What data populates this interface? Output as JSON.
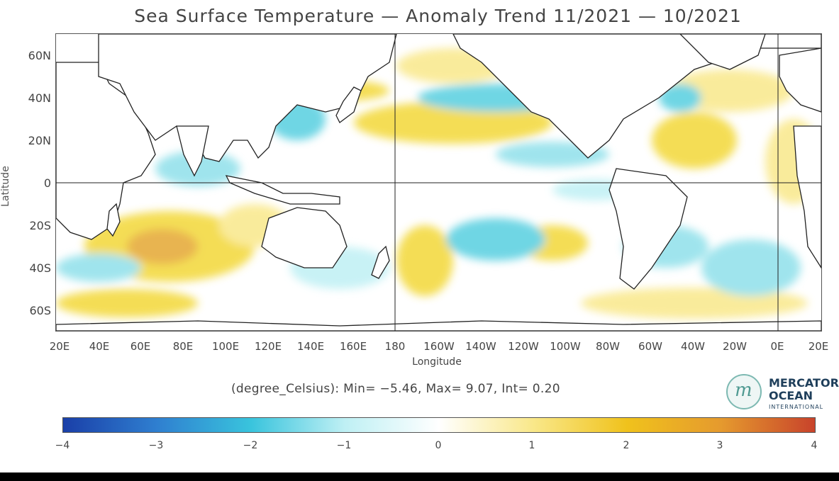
{
  "title": "Sea Surface Temperature — Anomaly Trend 11/2021 — 10/2021",
  "axes": {
    "ylabel": "Latitude",
    "xlabel": "Longitude",
    "lat_ticks": [
      "60N",
      "40N",
      "20N",
      "0",
      "20S",
      "40S",
      "60S"
    ],
    "lon_ticks": [
      "20E",
      "40E",
      "60E",
      "80E",
      "100E",
      "120E",
      "140E",
      "160E",
      "180",
      "160W",
      "140W",
      "120W",
      "100W",
      "80W",
      "60W",
      "40W",
      "20W",
      "0E",
      "20E"
    ]
  },
  "stats_text": "(degree_Celsius): Min= −5.46, Max= 9.07, Int= 0.20",
  "colorbar": {
    "ticks": [
      "−4",
      "−3",
      "−2",
      "−1",
      "0",
      "1",
      "2",
      "3",
      "4"
    ],
    "colors": [
      "#1a3fa8",
      "#2f7fd0",
      "#39c4dd",
      "#bff0f4",
      "#ffffff",
      "#f9e88a",
      "#f0c21c",
      "#e59a2e",
      "#c8432b"
    ],
    "min": -4,
    "max": 4
  },
  "logo": {
    "line1": "MERCATOR",
    "line2": "OCEAN",
    "line3": "INTERNATIONAL",
    "mark": "m"
  },
  "map": {
    "land_color": "#ffffff",
    "coast_color": "#222222",
    "warm_color": "#f3d838",
    "cool_color": "#56cfe0"
  }
}
